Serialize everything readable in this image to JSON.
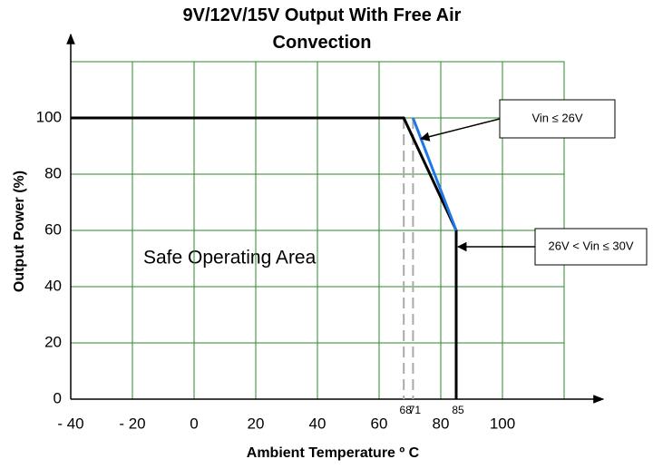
{
  "chart_data": {
    "type": "line",
    "title": "9V/12V/15V Output With Free Air Convection",
    "xlabel": "Ambient Temperature º C",
    "ylabel": "Output Power (%)",
    "xlim": [
      -40,
      120
    ],
    "ylim": [
      0,
      120
    ],
    "xticks": [
      {
        "value": -40,
        "label": "- 40"
      },
      {
        "value": -20,
        "label": "- 20"
      },
      0,
      20,
      40,
      60,
      80,
      100
    ],
    "yticks": [
      0,
      20,
      40,
      60,
      80,
      100
    ],
    "marked_x": [
      68,
      71,
      85
    ],
    "grid": true,
    "grid_color": "#2a8a2a",
    "series": [
      {
        "name": "26V < Vin ≤ 30V",
        "color": "#000000",
        "x": [
          -40,
          68,
          85,
          85
        ],
        "values": [
          100,
          100,
          60,
          0
        ]
      },
      {
        "name": "Vin ≤ 26V",
        "color": "#1e78e6",
        "x": [
          71,
          85
        ],
        "values": [
          100,
          60
        ]
      }
    ],
    "annotations": [
      "Safe Operating Area"
    ]
  }
}
